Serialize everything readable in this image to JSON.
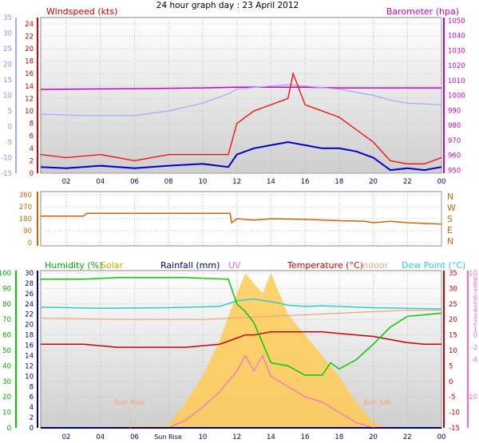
{
  "title": "24 hour graph day : 23 April 2012",
  "colors": {
    "gust": "#ff0000",
    "wind": "#0000cc",
    "baro": "#cc00cc",
    "temp_feel": "#a0a8ff",
    "direction": "#cc6600",
    "humidity": "#00cc00",
    "solar": "#ffcc55",
    "rainfall": "#000080",
    "uv": "#ff66cc",
    "temperature": "#cc0000",
    "indoor": "#f4a27a",
    "dewpoint": "#33cccc"
  },
  "panel1": {
    "left_title": "Windspeed (kts)",
    "right_title": "Barometer (hpa)"
  },
  "panel2": {
    "compass": [
      "N",
      "W",
      "S",
      "E",
      "N"
    ]
  },
  "panel3": {
    "legend": {
      "humidity": "Humidity (%)",
      "solar": "Solar",
      "rainfall": "Rainfall (mm)",
      "uv": "UV",
      "temperature": "Temperature (°C)",
      "indoor": "Indoor",
      "dewpoint": "Dew Point (°C)"
    },
    "sunrise_label": "Sun Rise",
    "sunset_label": "Sun Set",
    "sunrise_axis_label": "Sun Rise"
  },
  "chart_data": [
    {
      "type": "line",
      "xlabel": "",
      "x_ticks": [
        "02",
        "04",
        "06",
        "08",
        "10",
        "12",
        "14",
        "16",
        "18",
        "20",
        "22",
        "00"
      ],
      "xlim": [
        0.5,
        24.0
      ],
      "axes": {
        "far_left": {
          "ylim": [
            -15,
            35
          ],
          "ticks": [
            35,
            30,
            25,
            20,
            15,
            10,
            5,
            0,
            -5,
            -10,
            -15
          ]
        },
        "left": {
          "label": "Windspeed (kts)",
          "ylim": [
            0,
            25
          ],
          "ticks": [
            24,
            22,
            20,
            18,
            16,
            14,
            12,
            10,
            8,
            6,
            4,
            2,
            0
          ]
        },
        "right": {
          "label": "Barometer (hpa)",
          "ylim": [
            948,
            1052
          ],
          "ticks": [
            1050,
            1040,
            1030,
            1020,
            1010,
            1000,
            990,
            980,
            970,
            960,
            950
          ]
        }
      },
      "series": [
        {
          "key": "baro",
          "x": [
            0.5,
            6,
            10,
            12,
            14,
            16,
            18,
            20,
            24
          ],
          "y": [
            1004,
            1004.5,
            1005,
            1005.5,
            1005.5,
            1005.5,
            1005,
            1005,
            1005
          ]
        },
        {
          "key": "temp_feel",
          "x": [
            0.5,
            3,
            6,
            8,
            10,
            11.5,
            12,
            13,
            14,
            15,
            16,
            17,
            18,
            19,
            20,
            21,
            22,
            24
          ],
          "y": [
            4,
            3.5,
            3.5,
            5,
            7.5,
            10.5,
            12,
            12.5,
            13,
            13.5,
            13,
            12.5,
            12,
            11,
            10,
            8.5,
            7.5,
            7
          ]
        },
        {
          "key": "gust",
          "x": [
            0.5,
            2,
            4,
            6,
            8,
            10,
            11.5,
            12,
            13,
            14,
            15,
            15.3,
            16,
            17,
            18,
            19,
            20,
            21,
            22,
            23,
            24
          ],
          "y": [
            3,
            2.5,
            3,
            2,
            3,
            3,
            3,
            8,
            10,
            11,
            12,
            16,
            11,
            10,
            9,
            7,
            5,
            2,
            1.5,
            1.5,
            2.5
          ]
        },
        {
          "key": "wind",
          "x": [
            0.5,
            2,
            4,
            6,
            8,
            10,
            11.5,
            12,
            13,
            14,
            15,
            16,
            17,
            18,
            19,
            20,
            21,
            22,
            23,
            24
          ],
          "y": [
            1,
            0.8,
            1.2,
            0.8,
            1.2,
            1.5,
            1,
            3,
            4,
            4.5,
            5,
            4.5,
            4,
            4,
            3.5,
            2.5,
            0.5,
            0.8,
            0.5,
            1
          ]
        }
      ]
    },
    {
      "type": "line",
      "ylabel": "",
      "ylim": [
        0,
        360
      ],
      "y_ticks": [
        360,
        270,
        180,
        90,
        0
      ],
      "series": [
        {
          "key": "direction",
          "x": [
            0.5,
            3,
            3.2,
            11.6,
            11.7,
            12,
            13,
            14,
            16,
            18,
            19.5,
            20,
            21,
            22,
            24
          ],
          "y": [
            200,
            200,
            220,
            220,
            150,
            180,
            170,
            180,
            175,
            165,
            160,
            150,
            160,
            150,
            140
          ]
        }
      ]
    },
    {
      "type": "line",
      "axes": {
        "humidity": {
          "label": "Humidity (%)",
          "ylim": [
            0,
            100
          ],
          "ticks": [
            100,
            90,
            80,
            70,
            60,
            50,
            40,
            30,
            20,
            10,
            0
          ]
        },
        "rain_temp_left": {
          "ylim": [
            0,
            30
          ],
          "ticks": [
            30,
            28,
            26,
            24,
            22,
            20,
            18,
            16,
            14,
            12,
            10,
            8,
            6,
            4,
            2,
            0
          ]
        },
        "temperature": {
          "label": "Temperature (°C)",
          "ylim": [
            -15,
            35
          ],
          "ticks": [
            35,
            30,
            25,
            20,
            15,
            10,
            5,
            0,
            -5,
            -10,
            -15
          ]
        },
        "dewpoint": {
          "label": "Dew Point (°C)",
          "ylim": [
            -15,
            10
          ],
          "ticks": [
            10,
            9,
            8,
            7,
            6,
            5,
            4,
            3,
            2,
            1,
            0,
            -1,
            -2,
            -3,
            -4,
            -5,
            -6,
            -7,
            -8,
            -9,
            -10,
            -11,
            -12,
            -13,
            -14,
            -15
          ]
        }
      },
      "series": [
        {
          "key": "humidity",
          "x": [
            0.5,
            3,
            5,
            7,
            9,
            11.5,
            12,
            12.5,
            13,
            13.5,
            14,
            15,
            16,
            17,
            17.5,
            18,
            19,
            20,
            21,
            22,
            23,
            24
          ],
          "y": [
            96,
            96,
            97,
            97,
            97,
            96,
            80,
            75,
            68,
            55,
            42,
            40,
            34,
            34,
            42,
            38,
            44,
            54,
            65,
            72,
            73,
            74
          ]
        },
        {
          "key": "solar",
          "x": [
            0.5,
            8,
            9,
            10,
            11,
            12,
            12.5,
            13,
            13.5,
            14,
            15,
            16,
            17,
            18,
            19,
            20,
            21,
            24
          ],
          "y": [
            0,
            0.5,
            5,
            10,
            17,
            26,
            30,
            28,
            26,
            30,
            22,
            18,
            14,
            10,
            5,
            1,
            0,
            0
          ]
        },
        {
          "key": "rainfall",
          "x": [
            0.5,
            24
          ],
          "y": [
            0,
            0
          ]
        },
        {
          "key": "uv",
          "x": [
            0.5,
            8,
            9,
            10,
            11,
            12,
            12.5,
            13,
            13.5,
            14,
            15,
            16,
            17,
            18,
            19,
            20,
            24
          ],
          "y": [
            0,
            0,
            1.5,
            4,
            7,
            11,
            14,
            11,
            14,
            10,
            8,
            6,
            5,
            3,
            1,
            0,
            0
          ]
        },
        {
          "key": "temperature",
          "x": [
            0.5,
            3,
            5,
            7,
            9,
            11,
            12,
            12.5,
            13,
            14,
            15,
            16,
            17,
            18,
            19,
            20,
            21,
            22,
            23,
            24
          ],
          "y": [
            12,
            12,
            11,
            11,
            11,
            12,
            14,
            15,
            15,
            16,
            16,
            16,
            16,
            15.5,
            15,
            14.5,
            13.5,
            12.5,
            12,
            12
          ]
        },
        {
          "key": "indoor",
          "x": [
            0.5,
            5,
            10,
            12,
            14,
            16,
            18,
            20,
            22,
            24
          ],
          "y": [
            20.5,
            20,
            20,
            20.5,
            21,
            21.5,
            22,
            22.5,
            23,
            23
          ]
        },
        {
          "key": "dewpoint",
          "x": [
            0.5,
            4,
            8,
            11,
            12,
            13,
            14,
            15,
            16,
            17,
            18,
            19,
            20,
            22,
            24
          ],
          "y": [
            4.5,
            4.3,
            4.4,
            4.6,
            5.5,
            5.8,
            5.4,
            4.8,
            4.6,
            4.7,
            4.6,
            4.5,
            4.4,
            4.3,
            4.2
          ]
        }
      ]
    }
  ]
}
